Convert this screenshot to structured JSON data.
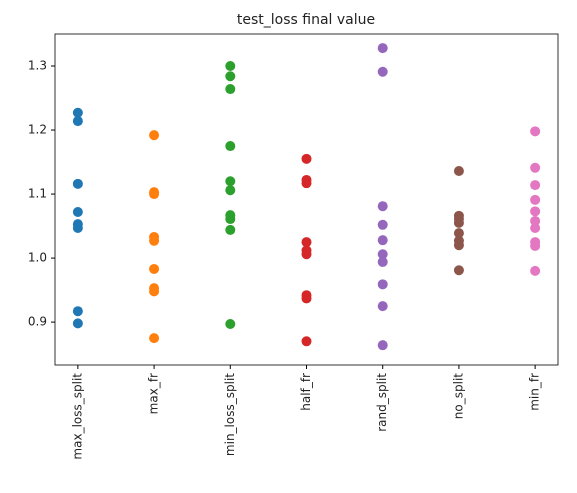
{
  "chart_data": {
    "type": "strip",
    "title": "test_loss final value",
    "categories": [
      "max_loss_split",
      "max_fr",
      "min_loss_split",
      "half_fr",
      "rand_split",
      "no_split",
      "min_fr"
    ],
    "colors": [
      "#1f77b4",
      "#ff7f0e",
      "#2ca02c",
      "#d62728",
      "#9467bd",
      "#8c564b",
      "#e377c2"
    ],
    "values": [
      [
        1.227,
        1.214,
        1.116,
        1.072,
        1.053,
        1.047,
        0.917,
        0.898
      ],
      [
        1.192,
        1.103,
        1.1,
        1.033,
        1.027,
        0.983,
        0.953,
        0.948,
        0.875
      ],
      [
        1.3,
        1.284,
        1.264,
        1.175,
        1.12,
        1.106,
        1.067,
        1.061,
        1.044,
        0.897
      ],
      [
        1.155,
        1.122,
        1.117,
        1.025,
        1.012,
        1.006,
        0.942,
        0.937,
        0.87
      ],
      [
        1.328,
        1.291,
        1.081,
        1.052,
        1.028,
        1.006,
        0.994,
        0.959,
        0.925,
        0.864
      ],
      [
        1.136,
        1.066,
        1.061,
        1.055,
        1.039,
        1.027,
        1.02,
        0.981
      ],
      [
        1.198,
        1.141,
        1.114,
        1.091,
        1.073,
        1.058,
        1.047,
        1.025,
        1.019,
        0.98
      ]
    ],
    "ylim": [
      0.833,
      1.35
    ],
    "yticks": [
      {
        "value": 0.9,
        "label": "0.9"
      },
      {
        "value": 1.0,
        "label": "1.0"
      },
      {
        "value": 1.1,
        "label": "1.1"
      },
      {
        "value": 1.2,
        "label": "1.2"
      },
      {
        "value": 1.3,
        "label": "1.3"
      }
    ]
  }
}
